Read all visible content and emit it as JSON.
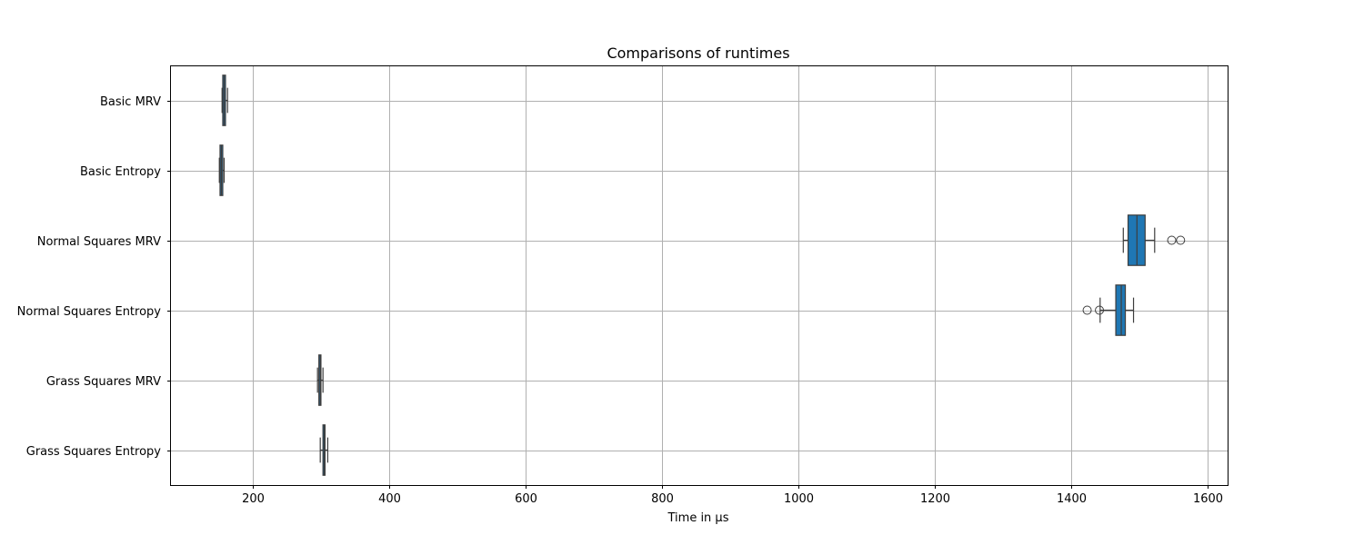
{
  "chart_data": {
    "type": "boxplot",
    "orientation": "horizontal",
    "title": "Comparisons of runtimes",
    "xlabel": "Time in μs",
    "ylabel": "",
    "xlim": [
      80,
      1630
    ],
    "xticks": [
      200,
      400,
      600,
      800,
      1000,
      1200,
      1400,
      1600
    ],
    "grid": true,
    "box_color": "#1f77b4",
    "line_color": "#3d3d3d",
    "grid_color": "#b0b0b0",
    "categories": [
      "Basic MRV",
      "Basic Entropy",
      "Normal Squares MRV",
      "Normal Squares Entropy",
      "Grass Squares MRV",
      "Grass Squares Entropy"
    ],
    "boxes": [
      {
        "name": "Basic MRV",
        "whislo": 155,
        "q1": 156,
        "med": 158,
        "q3": 160,
        "whishi": 163,
        "fliers": []
      },
      {
        "name": "Basic Entropy",
        "whislo": 151,
        "q1": 152,
        "med": 154,
        "q3": 156,
        "whishi": 158,
        "fliers": []
      },
      {
        "name": "Normal Squares MRV",
        "whislo": 1477,
        "q1": 1484,
        "med": 1497,
        "q3": 1509,
        "whishi": 1523,
        "fliers": [
          1548,
          1561
        ]
      },
      {
        "name": "Normal Squares Entropy",
        "whislo": 1443,
        "q1": 1466,
        "med": 1474,
        "q3": 1480,
        "whishi": 1492,
        "fliers": [
          1424,
          1442
        ]
      },
      {
        "name": "Grass Squares MRV",
        "whislo": 295,
        "q1": 297,
        "med": 299,
        "q3": 300,
        "whishi": 303,
        "fliers": []
      },
      {
        "name": "Grass Squares Entropy",
        "whislo": 299,
        "q1": 303,
        "med": 305,
        "q3": 306,
        "whishi": 310,
        "fliers": []
      }
    ]
  }
}
